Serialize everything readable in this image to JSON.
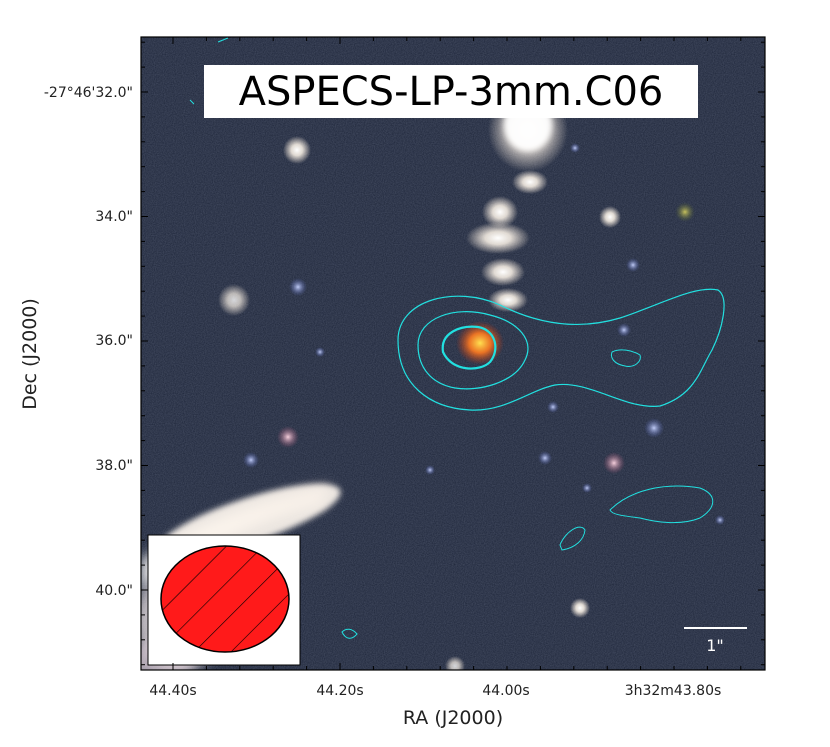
{
  "title": "ASPECS-LP-3mm.C06",
  "axes": {
    "xlabel": "RA (J2000)",
    "ylabel": "Dec (J2000)",
    "xticks": [
      "44.40s",
      "44.20s",
      "44.00s",
      "3h32m43.80s"
    ],
    "yticks": [
      "-27°46'32.0\"",
      "34.0\"",
      "36.0\"",
      "38.0\"",
      "40.0\""
    ]
  },
  "scale_bar": {
    "label": "1\""
  },
  "colors": {
    "background": "#1c2438",
    "contour": "#22e0e0",
    "beam_fill": "#ff1a1a",
    "beam_hatch": "#000000"
  },
  "beam_ellipse": "hatched-red",
  "image_content": "color-composite-galaxy-field"
}
